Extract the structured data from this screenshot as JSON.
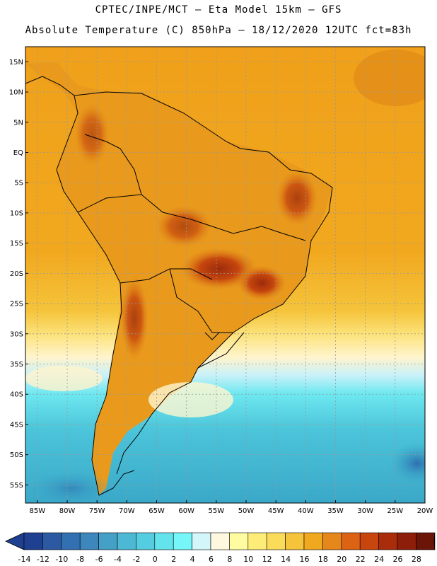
{
  "header": {
    "title_line1": "CPTEC/INPE/MCT –  Eta Model 15km – GFS",
    "title_line2": "Absolute Temperature (C) 850hPa – 18/12/2020 12UTC fct=83h"
  },
  "map": {
    "lat_labels": [
      "15N",
      "10N",
      "5N",
      "EQ",
      "5S",
      "10S",
      "15S",
      "20S",
      "25S",
      "30S",
      "35S",
      "40S",
      "45S",
      "50S",
      "55S"
    ],
    "lon_labels": [
      "85W",
      "80W",
      "75W",
      "70W",
      "65W",
      "60W",
      "55W",
      "50W",
      "45W",
      "40W",
      "35W",
      "30W",
      "25W",
      "20W"
    ],
    "lat_values": [
      15,
      10,
      5,
      0,
      -5,
      -10,
      -15,
      -20,
      -25,
      -30,
      -35,
      -40,
      -45,
      -50,
      -55
    ],
    "lon_values": [
      -85,
      -80,
      -75,
      -70,
      -65,
      -60,
      -55,
      -50,
      -45,
      -40,
      -35,
      -30,
      -25,
      -20
    ]
  },
  "colorbar": {
    "labels": [
      "-14",
      "-12",
      "-10",
      "-8",
      "-6",
      "-4",
      "-2",
      "0",
      "2",
      "4",
      "6",
      "8",
      "10",
      "12",
      "14",
      "16",
      "18",
      "20",
      "22",
      "24",
      "26",
      "28"
    ],
    "colors": [
      "#1f3f91",
      "#2b5aa3",
      "#3370b1",
      "#3d87bd",
      "#45a0c8",
      "#4cb8d3",
      "#55cde0",
      "#63e3ec",
      "#76f6f8",
      "#d3f6fb",
      "#fff8e0",
      "#fffba0",
      "#fdec78",
      "#fbdc5a",
      "#f5c43b",
      "#f0a81e",
      "#e6871b",
      "#db6313",
      "#c9450e",
      "#a92d0b",
      "#8c1e0a",
      "#6b1408"
    ]
  },
  "colors": {
    "ocean_n": "#eda31a",
    "ocean_s": "#3ec0d6",
    "border": "#000000",
    "grid": "#999999"
  }
}
